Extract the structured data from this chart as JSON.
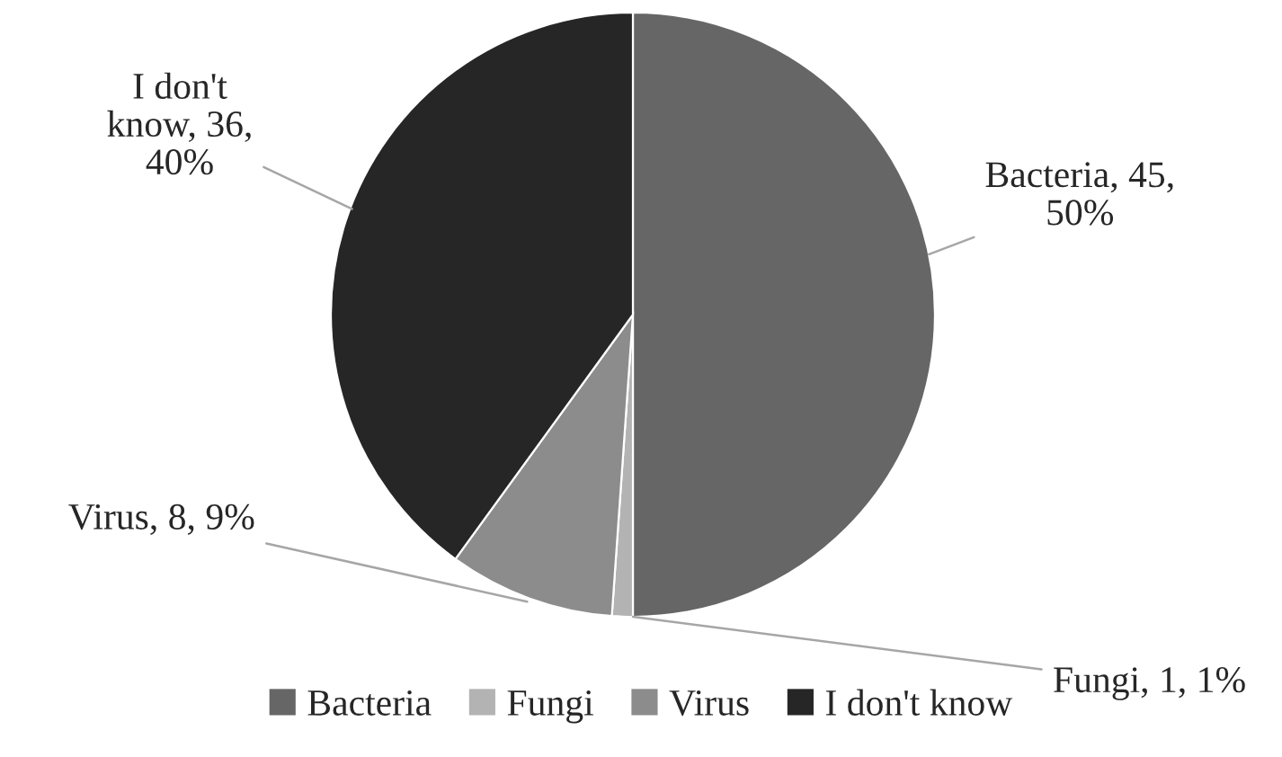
{
  "chart_data": {
    "type": "pie",
    "categories": [
      "Bacteria",
      "Fungi",
      "Virus",
      "I don't know"
    ],
    "values": [
      45,
      1,
      8,
      36
    ],
    "colors": [
      "#666666",
      "#b3b3b3",
      "#8c8c8c",
      "#262626"
    ],
    "value_labels": [
      "Bacteria, 45,\n50%",
      "Fungi, 1, 1%",
      "Virus, 8, 9%",
      "I don't\nknow, 36,\n40%"
    ],
    "legend": "bottom"
  }
}
